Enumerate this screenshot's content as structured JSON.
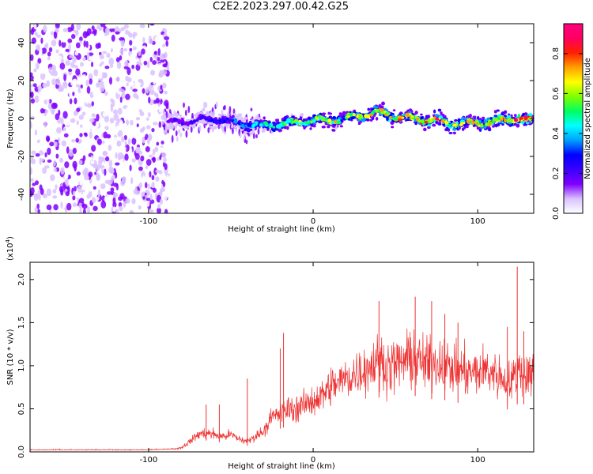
{
  "title": "C2E2.2023.297.00.42.G25",
  "chart_data": [
    {
      "type": "heatmap",
      "xlabel": "Height of straight line (km)",
      "ylabel": "Frequency (Hz)",
      "xlim": [
        -172,
        134
      ],
      "ylim": [
        -50,
        50
      ],
      "x_ticks": [
        -100,
        0,
        100
      ],
      "x_tick_labels": [
        "-100",
        "0",
        "100"
      ],
      "y_ticks": [
        -40,
        -20,
        0,
        20,
        40
      ],
      "y_tick_labels": [
        "-40",
        "-20",
        "0",
        "20",
        "40"
      ],
      "colorbar": {
        "label": "Normalized spectral amplitude",
        "range": [
          0,
          0.95
        ],
        "ticks": [
          0.0,
          0.2,
          0.4,
          0.6,
          0.8
        ],
        "tick_labels": [
          "0.0",
          "0.2",
          "0.4",
          "0.6",
          "0.8"
        ],
        "colors": [
          "#ffffff",
          "#d9c2ff",
          "#8000ff",
          "#3a00ff",
          "#0000ff",
          "#00a0ff",
          "#00ffff",
          "#00ff60",
          "#80ff00",
          "#ffff00",
          "#ffa000",
          "#ff2000",
          "#ff0060",
          "#ff0080"
        ]
      },
      "ridge": {
        "x": [
          -85,
          -70,
          -60,
          -50,
          -40,
          -30,
          -20,
          -10,
          0,
          10,
          20,
          30,
          40,
          50,
          60,
          70,
          80,
          90,
          100,
          110,
          120,
          130
        ],
        "freq": [
          -2,
          -1,
          0,
          -2,
          -3,
          -4,
          -3,
          -2,
          -1,
          -1,
          0,
          2,
          3,
          1,
          0,
          -1,
          -2,
          -3,
          -2,
          -2,
          0,
          -1
        ],
        "amplitude": [
          0.2,
          0.25,
          0.3,
          0.35,
          0.45,
          0.55,
          0.6,
          0.65,
          0.7,
          0.7,
          0.72,
          0.75,
          0.78,
          0.8,
          0.8,
          0.85,
          0.85,
          0.8,
          0.85,
          0.88,
          0.9,
          0.9
        ]
      },
      "noise_region_x": [
        -172,
        -88
      ]
    },
    {
      "type": "line",
      "xlabel": "Height of straight line (km)",
      "ylabel": "SNR (10 * v/v)",
      "multiplier_label": "(x10",
      "multiplier_exponent": "4",
      "xlim": [
        -172,
        134
      ],
      "ylim": [
        0,
        2.2
      ],
      "x_ticks": [
        -100,
        0,
        100
      ],
      "x_tick_labels": [
        "-100",
        "0",
        "100"
      ],
      "y_ticks": [
        0.0,
        0.5,
        1.0,
        1.5,
        2.0
      ],
      "y_tick_labels": [
        "0.0",
        "0.5",
        "1.0",
        "1.5",
        "2.0"
      ],
      "series": [
        {
          "color": "#ee3333",
          "x": [
            -172,
            -150,
            -120,
            -100,
            -85,
            -80,
            -75,
            -70,
            -65,
            -60,
            -55,
            -50,
            -45,
            -40,
            -35,
            -30,
            -25,
            -20,
            -15,
            -10,
            -5,
            0,
            5,
            10,
            15,
            20,
            25,
            30,
            35,
            40,
            45,
            50,
            55,
            60,
            65,
            70,
            75,
            80,
            85,
            90,
            95,
            100,
            105,
            110,
            115,
            120,
            125,
            130,
            134
          ],
          "y": [
            0.02,
            0.02,
            0.02,
            0.02,
            0.03,
            0.05,
            0.12,
            0.2,
            0.22,
            0.2,
            0.18,
            0.2,
            0.15,
            0.12,
            0.18,
            0.25,
            0.4,
            0.45,
            0.5,
            0.5,
            0.55,
            0.6,
            0.65,
            0.75,
            0.8,
            0.85,
            0.9,
            0.95,
            1.0,
            1.05,
            1.0,
            1.0,
            1.05,
            1.1,
            1.05,
            1.0,
            1.05,
            1.0,
            0.95,
            0.95,
            0.9,
            0.92,
            0.95,
            0.92,
            0.85,
            0.8,
            0.95,
            0.9,
            0.95
          ],
          "max_peaks": {
            "x": [
              -65,
              -57,
              -40,
              -20,
              -18,
              40,
              62,
              72,
              80,
              88,
              118,
              124,
              128
            ],
            "y": [
              0.55,
              0.55,
              0.85,
              1.2,
              1.38,
              1.75,
              1.8,
              1.75,
              1.6,
              1.5,
              1.45,
              2.15,
              1.4
            ]
          }
        }
      ]
    }
  ]
}
